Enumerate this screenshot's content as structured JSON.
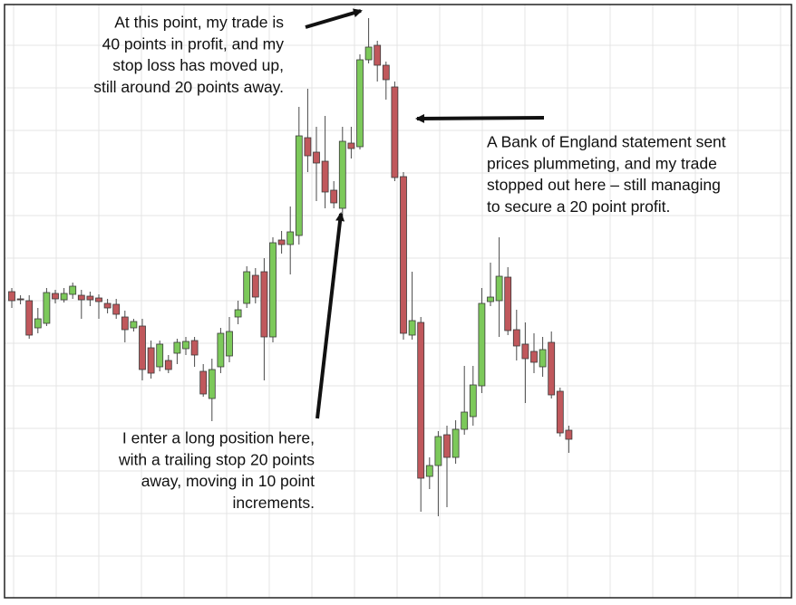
{
  "chart_data": {
    "type": "candlestick",
    "up_color": "#7cc95a",
    "down_color": "#c0585c",
    "grid": true,
    "ylim": [
      0,
      655
    ],
    "yticks": [
      46,
      93,
      140,
      187,
      234,
      281,
      328,
      375,
      422,
      469,
      516,
      563,
      610
    ],
    "categories": [
      null,
      null,
      null,
      null,
      null,
      null,
      null,
      null,
      null,
      null,
      null,
      null,
      null,
      null,
      null,
      null,
      null,
      null,
      null,
      null,
      null,
      null,
      null,
      null,
      null,
      null,
      null,
      null,
      null,
      null,
      null,
      null,
      null,
      null,
      null,
      null,
      null,
      null,
      null,
      null,
      null,
      null,
      null,
      null,
      null,
      null,
      null,
      null,
      null,
      null,
      null,
      null,
      null,
      null,
      null,
      null,
      null,
      null,
      null,
      null,
      null,
      null,
      null,
      null,
      null
    ],
    "open": [
      338,
      330,
      328,
      298,
      303,
      336,
      329,
      335,
      334,
      333,
      331,
      325,
      324,
      310,
      298,
      300,
      276,
      255,
      262,
      270,
      275,
      284,
      250,
      220,
      255,
      267,
      310,
      325,
      356,
      360,
      288,
      395,
      390,
      400,
      508,
      492,
      482,
      450,
      430,
      502,
      498,
      594,
      610,
      588,
      564,
      465,
      290,
      304,
      134,
      146,
      180,
      155,
      186,
      200,
      234,
      327,
      328,
      354,
      296,
      280,
      272,
      255,
      282,
      228,
      185
    ],
    "high": [
      342,
      334,
      334,
      320,
      342,
      340,
      342,
      348,
      340,
      338,
      335,
      330,
      330,
      317,
      308,
      308,
      284,
      284,
      268,
      286,
      288,
      288,
      258,
      264,
      298,
      310,
      328,
      366,
      364,
      375,
      398,
      405,
      432,
      542,
      562,
      520,
      532,
      460,
      520,
      520,
      600,
      640,
      615,
      592,
      570,
      470,
      360,
      310,
      155,
      184,
      190,
      196,
      256,
      256,
      342,
      370,
      398,
      365,
      318,
      304,
      292,
      288,
      294,
      232,
      190
    ],
    "low": [
      320,
      324,
      286,
      292,
      300,
      325,
      326,
      330,
      308,
      322,
      308,
      314,
      308,
      282,
      294,
      240,
      242,
      250,
      248,
      258,
      268,
      255,
      222,
      195,
      248,
      260,
      302,
      320,
      325,
      240,
      282,
      380,
      357,
      390,
      470,
      438,
      430,
      430,
      420,
      485,
      495,
      590,
      570,
      550,
      460,
      285,
      285,
      95,
      120,
      90,
      100,
      148,
      180,
      190,
      226,
      322,
      288,
      290,
      262,
      215,
      248,
      244,
      220,
      178,
      160
    ],
    "close": [
      328,
      329,
      290,
      308,
      337,
      330,
      336,
      344,
      329,
      329,
      327,
      320,
      313,
      296,
      305,
      252,
      248,
      280,
      252,
      282,
      283,
      268,
      225,
      252,
      292,
      294,
      318,
      360,
      332,
      288,
      392,
      390,
      404,
      510,
      488,
      480,
      448,
      436,
      504,
      496,
      594,
      608,
      588,
      572,
      464,
      292,
      306,
      132,
      146,
      178,
      155,
      186,
      205,
      235,
      325,
      332,
      355,
      295,
      278,
      264,
      260,
      274,
      224,
      182,
      175
    ],
    "annotations": [
      {
        "lines": [
          "At this point, my trade is",
          "40 points in profit, and my",
          "stop loss has moved up,",
          "still around 20 points away."
        ]
      },
      {
        "lines": [
          "A Bank of England statement sent",
          "prices plummeting, and my trade",
          "stopped out here – still managing",
          "to secure a 20 point profit."
        ]
      },
      {
        "lines": [
          "I enter a long position here,",
          "with a trailing stop 20 points",
          "away, moving in 10 point",
          "increments."
        ]
      }
    ]
  }
}
